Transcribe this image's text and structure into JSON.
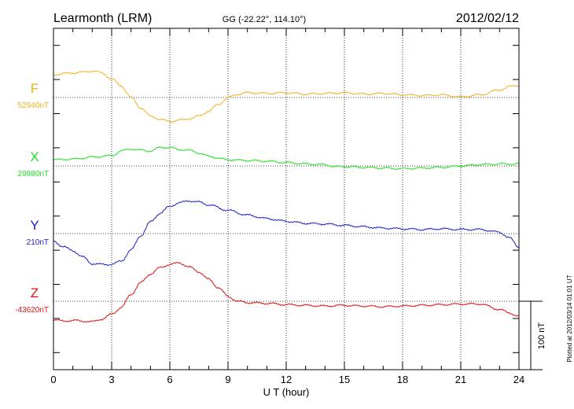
{
  "header": {
    "station": "Learmonth (LRM)",
    "coords": "GG (-22.22°, 114.10°)",
    "date": "2012/02/12"
  },
  "footer": {
    "plotted": "Plotted at 2012/03/14 01:01  UT"
  },
  "colors": {
    "F": "#f0b020",
    "X": "#22dd22",
    "Y": "#1a1acc",
    "Z": "#dd1111",
    "axis": "#000000"
  },
  "chart_data": {
    "type": "line",
    "xlabel": "U T (hour)",
    "xlim": [
      0,
      24
    ],
    "x_ticks": [
      "0",
      "3",
      "6",
      "9",
      "12",
      "15",
      "18",
      "21",
      "24"
    ],
    "scale_bar": {
      "label": "100 nT",
      "value_nT": 100
    },
    "series": [
      {
        "name": "F",
        "baseline_label": "52940nT",
        "color": "#f0b020",
        "x": [
          0,
          0.5,
          1,
          1.5,
          2,
          2.5,
          3,
          3.5,
          4,
          4.5,
          5,
          5.5,
          6,
          6.5,
          7,
          7.5,
          8,
          8.5,
          9,
          9.5,
          10,
          11,
          12,
          13,
          14,
          15,
          16,
          17,
          18,
          19,
          20,
          21,
          22,
          23,
          23.5,
          24
        ],
        "y": [
          33,
          35,
          36,
          37,
          39,
          36,
          27,
          17,
          0,
          -15,
          -27,
          -32,
          -35,
          -33,
          -31,
          -27,
          -20,
          -10,
          0,
          5,
          7,
          6,
          7,
          5,
          6,
          7,
          5,
          6,
          4,
          3,
          4,
          1,
          4,
          11,
          16,
          18
        ]
      },
      {
        "name": "X",
        "baseline_label": "29980nT",
        "color": "#22dd22",
        "x": [
          0,
          1,
          2,
          3,
          3.5,
          4,
          4.5,
          5,
          5.5,
          6,
          6.5,
          7,
          7.5,
          8,
          9,
          10,
          11,
          12,
          13,
          14,
          14.5,
          15,
          16,
          17,
          18,
          19,
          20,
          21,
          22,
          23,
          24
        ],
        "y": [
          9,
          10,
          13,
          15,
          22,
          25,
          23,
          22,
          27,
          27,
          24,
          23,
          19,
          14,
          9,
          8,
          7,
          5,
          3,
          2,
          -1,
          -1,
          -2,
          -3,
          -4,
          -3,
          -2,
          0,
          2,
          3,
          3
        ]
      },
      {
        "name": "Y",
        "baseline_label": "210nT",
        "color": "#1a1acc",
        "x": [
          0,
          0.5,
          1,
          1.5,
          2,
          2.5,
          3,
          3.5,
          4,
          4.5,
          5,
          5.5,
          6,
          6.5,
          7,
          7.5,
          8,
          9,
          10,
          11,
          12,
          13,
          14,
          15,
          16,
          17,
          18,
          19,
          20,
          21,
          22,
          23,
          23.5,
          24
        ],
        "y": [
          -11,
          -19,
          -25,
          -34,
          -44,
          -45,
          -45,
          -40,
          -24,
          -3,
          17,
          30,
          40,
          45,
          48,
          46,
          42,
          34,
          27,
          22,
          18,
          15,
          14,
          12,
          10,
          8,
          7,
          6,
          7,
          6,
          6,
          2,
          -6,
          -20
        ]
      },
      {
        "name": "Z",
        "baseline_label": "-43620nT",
        "color": "#dd1111",
        "x": [
          0,
          0.5,
          1,
          1.5,
          2,
          2.5,
          3,
          3.5,
          4,
          4.5,
          5,
          5.5,
          6,
          6.5,
          7,
          7.5,
          8,
          8.5,
          9,
          9.5,
          10,
          11,
          12,
          13,
          14,
          15,
          16,
          17,
          18,
          19,
          20,
          21,
          22,
          23,
          23.5,
          24
        ],
        "y": [
          -27,
          -29,
          -28,
          -29,
          -30,
          -26,
          -19,
          -9,
          10,
          27,
          40,
          49,
          54,
          56,
          50,
          43,
          32,
          20,
          7,
          0,
          -2,
          -3,
          -5,
          -6,
          -7,
          -6,
          -7,
          -8,
          -7,
          -6,
          -5,
          -4,
          -4,
          -12,
          -17,
          -22
        ]
      }
    ]
  }
}
